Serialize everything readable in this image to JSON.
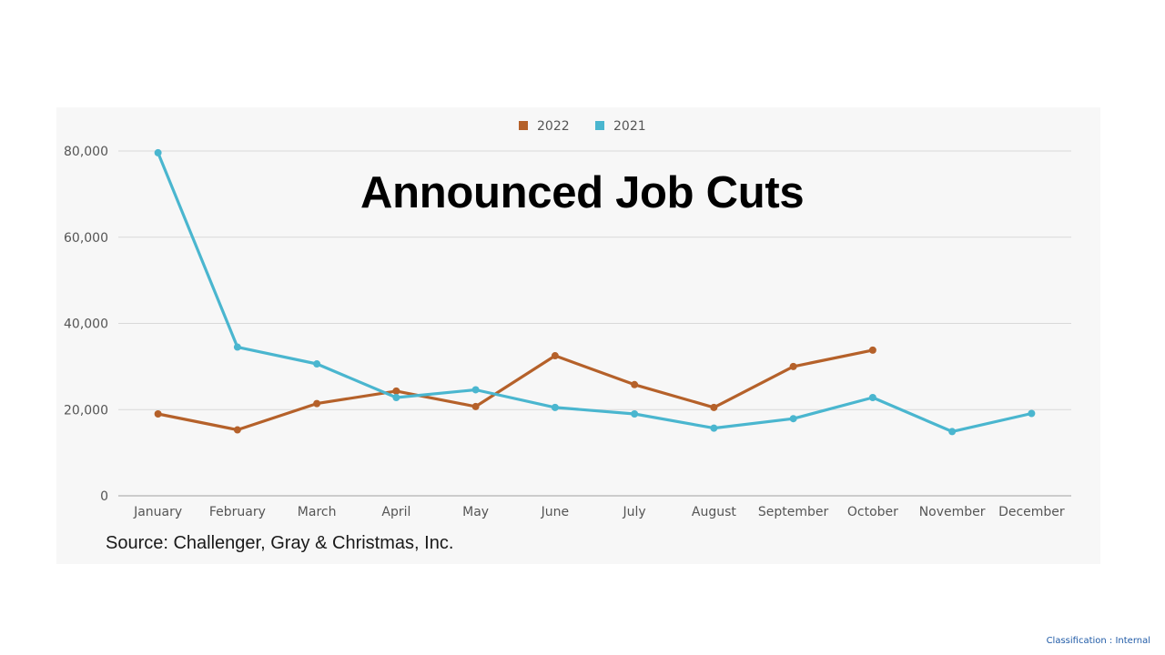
{
  "chart_data": {
    "type": "line",
    "title": "Announced Job Cuts",
    "source": "Source: Challenger, Gray & Christmas, Inc.",
    "categories": [
      "January",
      "February",
      "March",
      "April",
      "May",
      "June",
      "July",
      "August",
      "September",
      "October",
      "November",
      "December"
    ],
    "series": [
      {
        "name": "2022",
        "color": "#b5612a",
        "values": [
          19000,
          15300,
          21400,
          24300,
          20700,
          32500,
          25800,
          20500,
          30000,
          33800,
          null,
          null
        ]
      },
      {
        "name": "2021",
        "color": "#4ab6cf",
        "values": [
          79600,
          34500,
          30600,
          22800,
          24600,
          20500,
          19000,
          15700,
          17900,
          22800,
          14900,
          19100
        ]
      }
    ],
    "y_ticks": [
      "0",
      "20,000",
      "40,000",
      "60,000",
      "80,000"
    ],
    "ylim": [
      0,
      80000
    ],
    "grid": true,
    "legend_position": "top-center"
  },
  "footer": {
    "classification": "Classification : Internal"
  }
}
